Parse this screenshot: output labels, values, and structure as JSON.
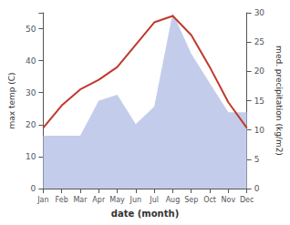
{
  "chart_data": {
    "type": "line",
    "xlabel": "date (month)",
    "ylabel": "max temp (C)",
    "y2label": "med. precipitation (kg/m2)",
    "categories": [
      "Jan",
      "Feb",
      "Mar",
      "Apr",
      "May",
      "Jun",
      "Jul",
      "Aug",
      "Sep",
      "Oct",
      "Nov",
      "Dec"
    ],
    "series": [
      {
        "type": "area",
        "color": "#b8c4e8",
        "axis": "y2",
        "values": [
          9,
          9,
          9,
          15,
          16,
          11,
          14,
          30,
          23,
          18,
          13,
          13
        ]
      },
      {
        "type": "line",
        "color": "#c0392b",
        "values": [
          19,
          26,
          31,
          34,
          38,
          45,
          52,
          54,
          48,
          38,
          27,
          19
        ]
      }
    ],
    "ylim": [
      0,
      55
    ],
    "yticks": [
      0,
      10,
      20,
      30,
      40,
      50
    ],
    "y2lim": [
      0,
      30
    ],
    "y2ticks": [
      0,
      5,
      10,
      15,
      20,
      25,
      30
    ],
    "grid": false
  }
}
